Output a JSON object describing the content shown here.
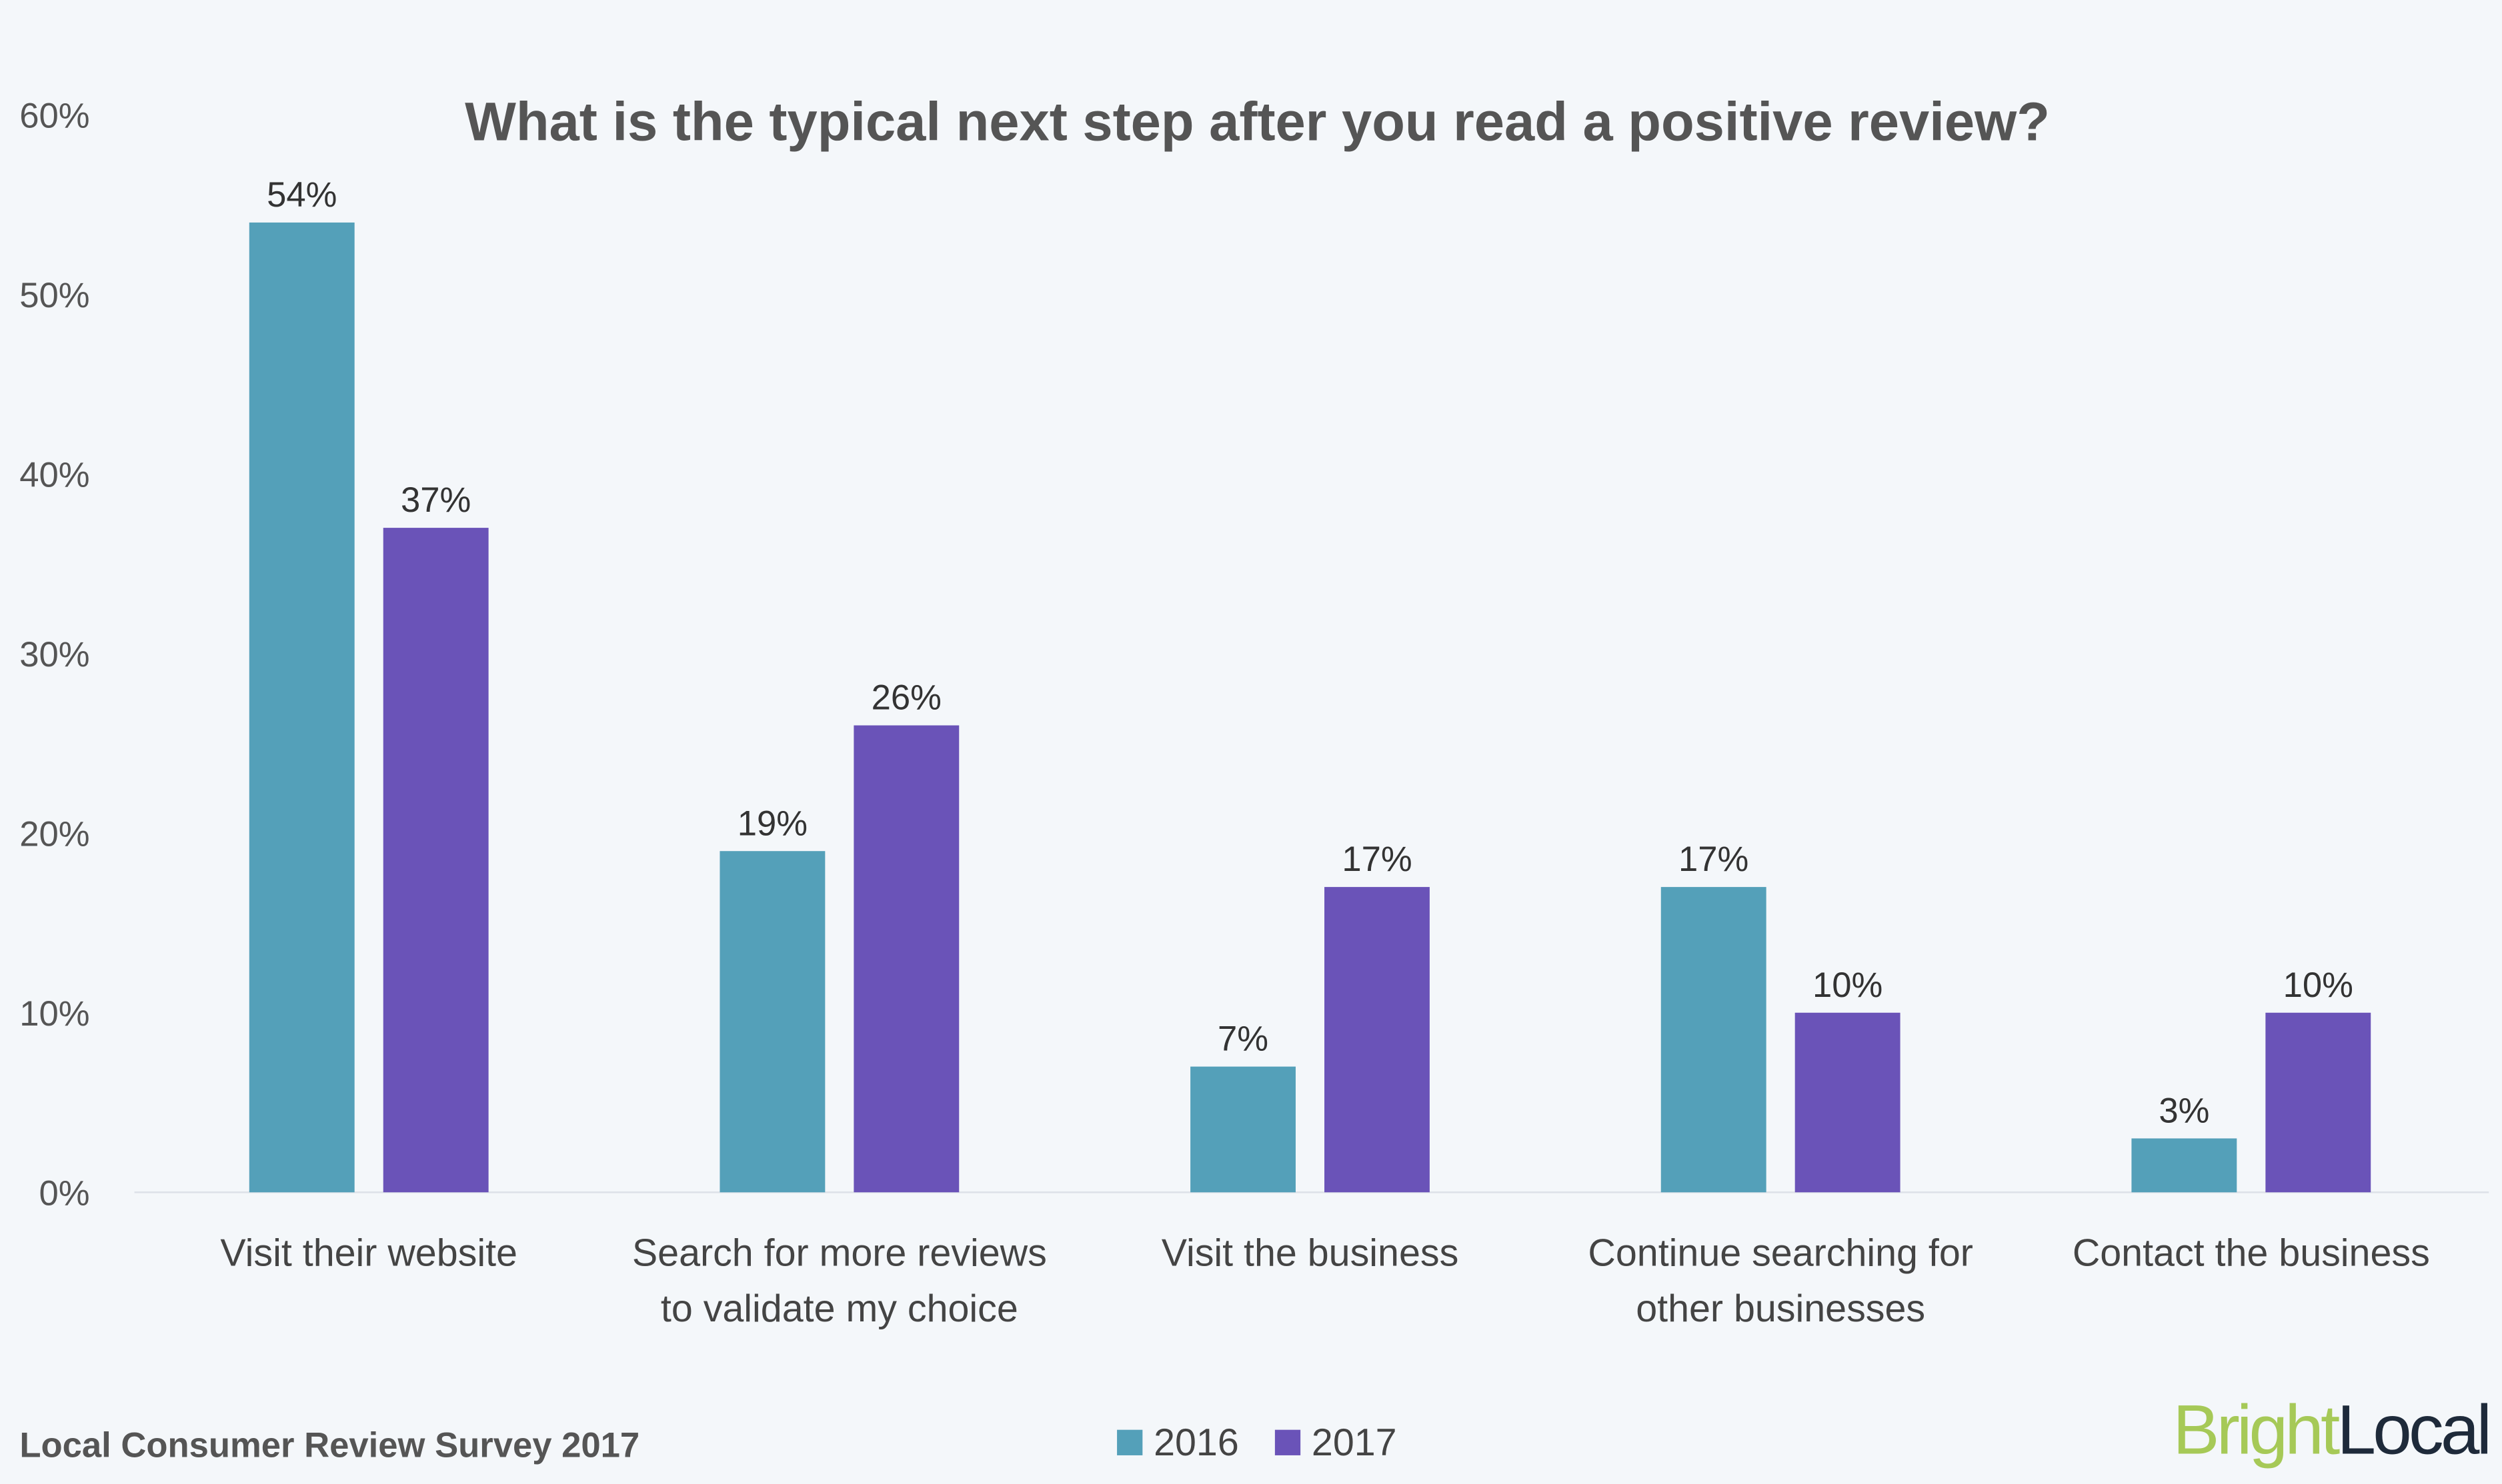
{
  "chart_data": {
    "type": "bar",
    "title": "What is the typical next step after you read a positive review?",
    "categories": [
      [
        "Visit their website"
      ],
      [
        "Search for more reviews",
        "to validate my choice"
      ],
      [
        "Visit the business"
      ],
      [
        "Continue searching for",
        "other businesses"
      ],
      [
        "Contact the business"
      ]
    ],
    "series": [
      {
        "name": "2016",
        "color": "#54a0b9",
        "values": [
          54,
          19,
          7,
          17,
          3
        ],
        "labels": [
          "54%",
          "19%",
          "7%",
          "17%",
          "3%"
        ]
      },
      {
        "name": "2017",
        "color": "#6a53b8",
        "values": [
          37,
          26,
          17,
          10,
          10
        ],
        "labels": [
          "37%",
          "26%",
          "17%",
          "10%",
          "10%"
        ]
      }
    ],
    "ylim": [
      0,
      60
    ],
    "yticks": [
      "0%",
      "10%",
      "20%",
      "30%",
      "40%",
      "50%",
      "60%"
    ],
    "grid": false,
    "legend": "bottom-center",
    "xlabel": "",
    "ylabel": ""
  },
  "footer": {
    "source": "Local Consumer Review Survey 2017",
    "logo_part1": "Bright",
    "logo_part2": "Local",
    "logo_colors": [
      "#a6c957",
      "#1e2a3a"
    ]
  }
}
